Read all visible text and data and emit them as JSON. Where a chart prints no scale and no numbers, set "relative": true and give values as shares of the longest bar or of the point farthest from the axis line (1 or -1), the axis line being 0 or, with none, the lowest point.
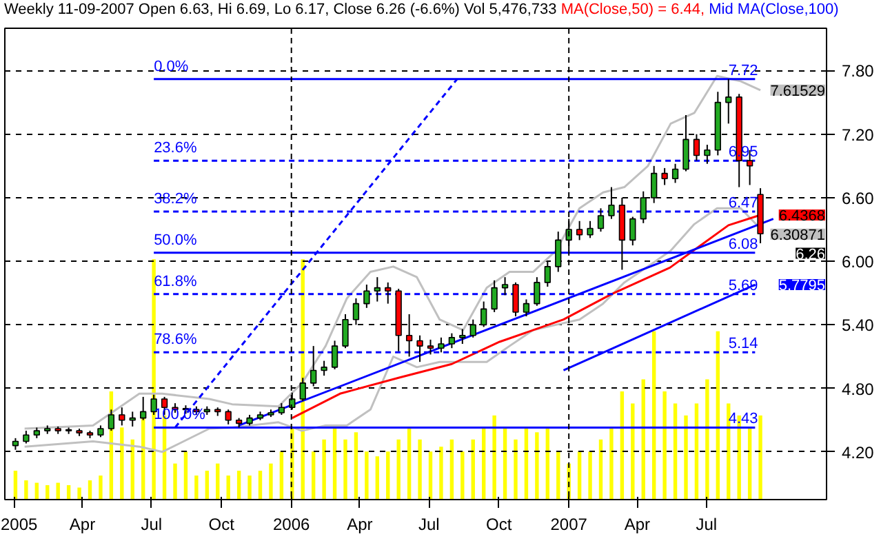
{
  "chart_data": [
    {
      "type": "candlestick",
      "title": "Weekly 11-09-2007 Open 6.63, Hi 6.69, Lo 6.17, Close 6.26 (-6.6%) Vol 5,476,733",
      "x": [
        "2005-01-03",
        "2005-01-17",
        "2005-01-31",
        "2005-02-14",
        "2005-02-28",
        "2005-03-14",
        "2005-03-28",
        "2005-04-11",
        "2005-04-25",
        "2005-05-09",
        "2005-05-23",
        "2005-06-06",
        "2005-06-20",
        "2005-07-04",
        "2005-07-18",
        "2005-08-01",
        "2005-08-15",
        "2005-08-29",
        "2005-09-12",
        "2005-09-26",
        "2005-10-10",
        "2005-10-24",
        "2005-11-07",
        "2005-11-21",
        "2005-12-05",
        "2005-12-19",
        "2006-01-02",
        "2006-01-16",
        "2006-01-30",
        "2006-02-13",
        "2006-02-27",
        "2006-03-13",
        "2006-03-27",
        "2006-04-10",
        "2006-04-24",
        "2006-05-08",
        "2006-05-22",
        "2006-06-05",
        "2006-06-19",
        "2006-07-03",
        "2006-07-17",
        "2006-07-31",
        "2006-08-14",
        "2006-08-28",
        "2006-09-11",
        "2006-09-25",
        "2006-10-09",
        "2006-10-23",
        "2006-11-06",
        "2006-11-20",
        "2006-12-04",
        "2006-12-18",
        "2007-01-01",
        "2007-01-15",
        "2007-01-29",
        "2007-02-12",
        "2007-02-26",
        "2007-03-12",
        "2007-03-26",
        "2007-04-09",
        "2007-04-23",
        "2007-05-07",
        "2007-05-21",
        "2007-06-04",
        "2007-06-18",
        "2007-07-02",
        "2007-07-16",
        "2007-07-30",
        "2007-08-13",
        "2007-08-27",
        "2007-09-10"
      ],
      "ohlc": [
        [
          4.26,
          4.33,
          4.22,
          4.3
        ],
        [
          4.3,
          4.4,
          4.28,
          4.36
        ],
        [
          4.36,
          4.43,
          4.33,
          4.4
        ],
        [
          4.4,
          4.45,
          4.37,
          4.42
        ],
        [
          4.42,
          4.44,
          4.37,
          4.4
        ],
        [
          4.4,
          4.43,
          4.37,
          4.41
        ],
        [
          4.4,
          4.42,
          4.35,
          4.38
        ],
        [
          4.38,
          4.4,
          4.33,
          4.36
        ],
        [
          4.36,
          4.45,
          4.34,
          4.42
        ],
        [
          4.42,
          4.6,
          4.4,
          4.55
        ],
        [
          4.55,
          4.62,
          4.45,
          4.5
        ],
        [
          4.5,
          4.58,
          4.44,
          4.52
        ],
        [
          4.52,
          4.72,
          4.5,
          4.58
        ],
        [
          4.58,
          4.74,
          4.55,
          4.7
        ],
        [
          4.7,
          4.72,
          4.55,
          4.62
        ],
        [
          4.62,
          4.66,
          4.57,
          4.6
        ],
        [
          4.6,
          4.64,
          4.56,
          4.61
        ],
        [
          4.6,
          4.63,
          4.55,
          4.58
        ],
        [
          4.58,
          4.63,
          4.55,
          4.6
        ],
        [
          4.6,
          4.62,
          4.54,
          4.58
        ],
        [
          4.58,
          4.6,
          4.46,
          4.5
        ],
        [
          4.5,
          4.52,
          4.43,
          4.47
        ],
        [
          4.47,
          4.55,
          4.45,
          4.52
        ],
        [
          4.52,
          4.58,
          4.5,
          4.55
        ],
        [
          4.55,
          4.6,
          4.53,
          4.57
        ],
        [
          4.57,
          4.66,
          4.55,
          4.62
        ],
        [
          4.62,
          4.76,
          4.6,
          4.7
        ],
        [
          4.7,
          4.9,
          4.68,
          4.85
        ],
        [
          4.85,
          5.2,
          4.82,
          4.97
        ],
        [
          4.97,
          5.06,
          4.92,
          5.0
        ],
        [
          5.0,
          5.25,
          4.98,
          5.2
        ],
        [
          5.2,
          5.5,
          5.18,
          5.45
        ],
        [
          5.45,
          5.65,
          5.4,
          5.6
        ],
        [
          5.6,
          5.78,
          5.56,
          5.72
        ],
        [
          5.72,
          5.85,
          5.62,
          5.75
        ],
        [
          5.75,
          5.8,
          5.6,
          5.72
        ],
        [
          5.72,
          5.74,
          5.15,
          5.3
        ],
        [
          5.3,
          5.5,
          5.1,
          5.25
        ],
        [
          5.25,
          5.3,
          5.05,
          5.2
        ],
        [
          5.2,
          5.26,
          5.12,
          5.18
        ],
        [
          5.18,
          5.28,
          5.14,
          5.22
        ],
        [
          5.22,
          5.32,
          5.18,
          5.28
        ],
        [
          5.28,
          5.36,
          5.22,
          5.3
        ],
        [
          5.3,
          5.45,
          5.28,
          5.4
        ],
        [
          5.4,
          5.62,
          5.38,
          5.55
        ],
        [
          5.55,
          5.82,
          5.52,
          5.75
        ],
        [
          5.75,
          5.85,
          5.68,
          5.78
        ],
        [
          5.78,
          5.8,
          5.48,
          5.52
        ],
        [
          5.52,
          5.64,
          5.48,
          5.6
        ],
        [
          5.6,
          5.85,
          5.58,
          5.8
        ],
        [
          5.8,
          6.0,
          5.76,
          5.95
        ],
        [
          5.95,
          6.28,
          5.9,
          6.2
        ],
        [
          6.2,
          6.4,
          6.1,
          6.3
        ],
        [
          6.3,
          6.38,
          6.2,
          6.25
        ],
        [
          6.25,
          6.38,
          6.22,
          6.31
        ],
        [
          6.31,
          6.5,
          6.28,
          6.43
        ],
        [
          6.43,
          6.7,
          6.4,
          6.53
        ],
        [
          6.53,
          6.6,
          5.92,
          6.2
        ],
        [
          6.2,
          6.42,
          6.15,
          6.4
        ],
        [
          6.4,
          6.66,
          6.36,
          6.6
        ],
        [
          6.6,
          6.9,
          6.55,
          6.83
        ],
        [
          6.83,
          6.88,
          6.72,
          6.78
        ],
        [
          6.78,
          6.92,
          6.74,
          6.87
        ],
        [
          6.87,
          7.38,
          6.85,
          7.15
        ],
        [
          7.15,
          7.2,
          6.95,
          7.0
        ],
        [
          7.0,
          7.1,
          6.92,
          7.05
        ],
        [
          7.05,
          7.6,
          7.0,
          7.5
        ],
        [
          7.5,
          7.72,
          7.3,
          7.55
        ],
        [
          7.55,
          7.58,
          6.7,
          6.95
        ],
        [
          6.95,
          7.05,
          6.72,
          6.9
        ],
        [
          6.63,
          6.69,
          6.17,
          6.26
        ]
      ],
      "colors": [
        "#22aa22",
        "#22aa22",
        "#22aa22",
        "#22aa22",
        "#ff0000",
        "#22aa22",
        "#ff0000",
        "#ff0000",
        "#22aa22",
        "#22aa22",
        "#ff0000",
        "#22aa22",
        "#22aa22",
        "#22aa22",
        "#ff0000",
        "#ff0000",
        "#22aa22",
        "#ff0000",
        "#22aa22",
        "#ff0000",
        "#ff0000",
        "#ff0000",
        "#22aa22",
        "#22aa22",
        "#22aa22",
        "#22aa22",
        "#22aa22",
        "#22aa22",
        "#22aa22",
        "#22aa22",
        "#22aa22",
        "#22aa22",
        "#22aa22",
        "#22aa22",
        "#22aa22",
        "#ff0000",
        "#ff0000",
        "#ff0000",
        "#ff0000",
        "#ff0000",
        "#22aa22",
        "#22aa22",
        "#22aa22",
        "#22aa22",
        "#22aa22",
        "#22aa22",
        "#22aa22",
        "#ff0000",
        "#22aa22",
        "#22aa22",
        "#22aa22",
        "#22aa22",
        "#22aa22",
        "#ff0000",
        "#22aa22",
        "#22aa22",
        "#22aa22",
        "#ff0000",
        "#22aa22",
        "#22aa22",
        "#22aa22",
        "#ff0000",
        "#22aa22",
        "#22aa22",
        "#ff0000",
        "#22aa22",
        "#22aa22",
        "#22aa22",
        "#ff0000",
        "#ff0000",
        "#ff0000"
      ],
      "value_labels": [
        null,
        null,
        null,
        null,
        null,
        null,
        null,
        null,
        null,
        null,
        null,
        null,
        null,
        null,
        null,
        null,
        null,
        null,
        null,
        null,
        null,
        null,
        null,
        null,
        null,
        null,
        null,
        null,
        null,
        null,
        null,
        null,
        null,
        null,
        null,
        null,
        null,
        null,
        null,
        null,
        null,
        null,
        null,
        null,
        null,
        null,
        null,
        null,
        null,
        null,
        null,
        null,
        null,
        null,
        null,
        null,
        null,
        null,
        null,
        null,
        null,
        null,
        null,
        null,
        null,
        null,
        null,
        null,
        null,
        null,
        "6.26"
      ],
      "series": [
        {
          "type": "line",
          "color": "#c0c0c0",
          "x": [
            "2005-01-15",
            "2005-04-15",
            "2005-06-15",
            "2005-07-15",
            "2005-09-15",
            "2005-10-15",
            "2005-12-15",
            "2006-01-15",
            "2006-02-15",
            "2006-03-15",
            "2006-04-15",
            "2006-05-15",
            "2006-06-15",
            "2006-07-15",
            "2006-08-15",
            "2006-09-15",
            "2006-10-15",
            "2006-11-15",
            "2006-12-15",
            "2007-01-15",
            "2007-02-15",
            "2007-03-15",
            "2007-04-15",
            "2007-05-15",
            "2007-06-15",
            "2007-07-15",
            "2007-08-15",
            "2007-09-10"
          ],
          "values": [
            4.42,
            4.45,
            4.75,
            4.75,
            4.7,
            4.65,
            4.63,
            4.85,
            5.2,
            5.65,
            5.9,
            5.95,
            5.85,
            5.45,
            5.35,
            5.75,
            5.9,
            5.9,
            6.1,
            6.5,
            6.65,
            6.7,
            6.9,
            7.3,
            7.4,
            7.75,
            7.7,
            7.61529
          ],
          "value_labels": [
            null,
            null,
            null,
            null,
            null,
            null,
            null,
            null,
            null,
            null,
            null,
            null,
            null,
            null,
            null,
            null,
            null,
            null,
            null,
            null,
            null,
            null,
            null,
            null,
            null,
            null,
            null,
            "7.61529"
          ]
        },
        {
          "type": "line",
          "color": "#c0c0c0",
          "x": [
            "2005-01-15",
            "2005-04-15",
            "2005-06-15",
            "2005-07-15",
            "2005-09-15",
            "2005-10-15",
            "2005-12-15",
            "2006-01-15",
            "2006-02-15",
            "2006-03-15",
            "2006-04-15",
            "2006-05-15",
            "2006-06-15",
            "2006-07-15",
            "2006-08-15",
            "2006-09-15",
            "2006-10-15",
            "2006-11-15",
            "2006-12-15",
            "2007-01-15",
            "2007-02-15",
            "2007-03-15",
            "2007-04-15",
            "2007-05-15",
            "2007-06-15",
            "2007-07-15",
            "2007-08-15",
            "2007-09-10"
          ],
          "values": [
            4.25,
            4.3,
            4.25,
            4.2,
            4.42,
            4.43,
            4.48,
            4.4,
            4.45,
            4.45,
            4.6,
            5.1,
            5.0,
            5.05,
            5.05,
            5.05,
            5.2,
            5.35,
            5.4,
            5.45,
            5.6,
            5.8,
            5.95,
            6.1,
            6.35,
            6.5,
            6.5,
            6.30871
          ],
          "value_labels": [
            null,
            null,
            null,
            null,
            null,
            null,
            null,
            null,
            null,
            null,
            null,
            null,
            null,
            null,
            null,
            null,
            null,
            null,
            null,
            null,
            null,
            null,
            null,
            null,
            null,
            null,
            null,
            "6.30871"
          ]
        },
        {
          "type": "line",
          "name": "MA(Close,50) = 6.44,",
          "color": "#ff0000",
          "x": [
            "2006-01-02",
            "2006-03-06",
            "2006-05-22",
            "2006-07-31",
            "2006-10-02",
            "2006-12-25",
            "2007-02-26",
            "2007-05-14",
            "2007-07-30",
            "2007-09-10"
          ],
          "values": [
            4.52,
            4.75,
            4.9,
            5.03,
            5.24,
            5.45,
            5.69,
            5.94,
            6.34,
            6.4368
          ],
          "value_labels": [
            null,
            null,
            null,
            null,
            null,
            null,
            null,
            null,
            null,
            "6.4368"
          ]
        },
        {
          "type": "line",
          "name": "Mid MA(Close,100)",
          "color": "#0000ff",
          "x": [
            "2006-12-25",
            "2007-09-03"
          ],
          "values": [
            4.97,
            5.7795
          ],
          "value_labels": [
            null,
            "5.7795"
          ]
        },
        {
          "type": "line",
          "color": "#0000ff",
          "x": [
            "2005-10-24",
            "2007-09-27"
          ],
          "values": [
            4.45,
            6.4
          ]
        },
        {
          "type": "line",
          "color": "#0000ff",
          "line_style": "dashed",
          "x": [
            "2005-08-01",
            "2006-08-07"
          ],
          "values": [
            4.43,
            7.72
          ]
        },
        {
          "type": "line",
          "color": "#0000ff",
          "x": [
            "2005-07-04",
            "2007-09-03"
          ],
          "values": [
            7.72,
            7.72
          ]
        },
        {
          "type": "line",
          "color": "#0000ff",
          "line_style": "dashed",
          "x": [
            "2005-07-04",
            "2007-09-03"
          ],
          "values": [
            6.95,
            6.95
          ]
        },
        {
          "type": "line",
          "color": "#0000ff",
          "line_style": "dashed",
          "x": [
            "2005-07-04",
            "2007-09-03"
          ],
          "values": [
            6.47,
            6.47
          ]
        },
        {
          "type": "line",
          "color": "#0000ff",
          "x": [
            "2005-07-04",
            "2007-09-03"
          ],
          "values": [
            6.08,
            6.08
          ]
        },
        {
          "type": "line",
          "color": "#0000ff",
          "line_style": "dashed",
          "x": [
            "2005-07-04",
            "2007-09-03"
          ],
          "values": [
            5.69,
            5.69
          ]
        },
        {
          "type": "line",
          "color": "#0000ff",
          "line_style": "dashed",
          "x": [
            "2005-07-04",
            "2007-09-03"
          ],
          "values": [
            5.14,
            5.14
          ]
        },
        {
          "type": "line",
          "color": "#0000ff",
          "x": [
            "2005-07-04",
            "2007-09-03"
          ],
          "values": [
            4.43,
            4.43
          ]
        }
      ],
      "annotations": [
        {
          "text": "0.0%",
          "x": "2005-07-04",
          "y": 7.72
        },
        {
          "text": "23.6%",
          "x": "2005-07-04",
          "y": 6.95
        },
        {
          "text": "38.2%",
          "x": "2005-07-04",
          "y": 6.47
        },
        {
          "text": "50.0%",
          "x": "2005-07-04",
          "y": 6.08
        },
        {
          "text": "61.8%",
          "x": "2005-07-04",
          "y": 5.69
        },
        {
          "text": "78.6%",
          "x": "2005-07-04",
          "y": 5.14
        },
        {
          "text": "100.0%",
          "x": "2005-07-04",
          "y": 4.43
        },
        {
          "text": "7.72",
          "x": "2007-07-30",
          "y": 7.72
        },
        {
          "text": "6.95",
          "x": "2007-07-30",
          "y": 6.95
        },
        {
          "text": "6.47",
          "x": "2007-07-30",
          "y": 6.47
        },
        {
          "text": "6.08",
          "x": "2007-07-30",
          "y": 6.08
        },
        {
          "text": "5.69",
          "x": "2007-07-30",
          "y": 5.69
        },
        {
          "text": "5.14",
          "x": "2007-07-30",
          "y": 5.14
        },
        {
          "text": "4.43",
          "x": "2007-07-30",
          "y": 4.43
        }
      ],
      "xlim": [
        "2004-12-20",
        "2007-12-06"
      ],
      "xticks": [
        {
          "value": "2005-01-01",
          "label": "2005"
        },
        {
          "value": "2005-04-01",
          "label": "Apr"
        },
        {
          "value": "2005-07-01",
          "label": "Jul"
        },
        {
          "value": "2005-10-01",
          "label": "Oct"
        },
        {
          "value": "2006-01-01",
          "label": "2006"
        },
        {
          "value": "2006-04-01",
          "label": "Apr"
        },
        {
          "value": "2006-07-01",
          "label": "Jul"
        },
        {
          "value": "2006-10-01",
          "label": "Oct"
        },
        {
          "value": "2007-01-01",
          "label": "2007"
        },
        {
          "value": "2007-04-01",
          "label": "Apr"
        },
        {
          "value": "2007-07-01",
          "label": "Jul"
        }
      ],
      "ylim": [
        3.75,
        8.2
      ],
      "yticks": [
        {
          "value": 4.2,
          "label": "4.20"
        },
        {
          "value": 4.8,
          "label": "4.80"
        },
        {
          "value": 5.4,
          "label": "5.40"
        },
        {
          "value": 6.0,
          "label": "6.00"
        },
        {
          "value": 6.6,
          "label": "6.60"
        },
        {
          "value": 7.2,
          "label": "7.20"
        },
        {
          "value": 7.8,
          "label": "7.80"
        }
      ],
      "grid": "y",
      "ref_lines": [
        {
          "axis": "x",
          "value": "2006-01-01",
          "color": "#000000",
          "line_style": "dashed"
        },
        {
          "axis": "x",
          "value": "2007-01-01",
          "color": "#000000",
          "line_style": "dashed"
        }
      ],
      "legend": "top"
    },
    {
      "type": "bar",
      "relative": true,
      "color": "#ffff00",
      "xlim": [
        "2004-12-20",
        "2007-12-06"
      ],
      "tick_labels": false,
      "x": [
        "2005-01-03",
        "2005-01-17",
        "2005-01-31",
        "2005-02-14",
        "2005-02-28",
        "2005-03-14",
        "2005-03-28",
        "2005-04-11",
        "2005-04-25",
        "2005-05-09",
        "2005-05-23",
        "2005-06-06",
        "2005-06-20",
        "2005-07-04",
        "2005-07-18",
        "2005-08-01",
        "2005-08-15",
        "2005-08-29",
        "2005-09-12",
        "2005-09-26",
        "2005-10-10",
        "2005-10-24",
        "2005-11-07",
        "2005-11-21",
        "2005-12-05",
        "2005-12-19",
        "2006-01-02",
        "2006-01-16",
        "2006-01-30",
        "2006-02-13",
        "2006-02-27",
        "2006-03-13",
        "2006-03-27",
        "2006-04-10",
        "2006-04-24",
        "2006-05-08",
        "2006-05-22",
        "2006-06-05",
        "2006-06-19",
        "2006-07-03",
        "2006-07-17",
        "2006-07-31",
        "2006-08-14",
        "2006-08-28",
        "2006-09-11",
        "2006-09-25",
        "2006-10-09",
        "2006-10-23",
        "2006-11-06",
        "2006-11-20",
        "2006-12-04",
        "2006-12-18",
        "2007-01-01",
        "2007-01-15",
        "2007-01-29",
        "2007-02-12",
        "2007-02-26",
        "2007-03-12",
        "2007-03-26",
        "2007-04-09",
        "2007-04-23",
        "2007-05-07",
        "2007-05-21",
        "2007-06-04",
        "2007-06-18",
        "2007-07-02",
        "2007-07-16",
        "2007-07-30",
        "2007-08-13",
        "2007-08-27",
        "2007-09-10"
      ],
      "values": [
        0.12,
        0.08,
        0.07,
        0.06,
        0.07,
        0.06,
        0.05,
        0.08,
        0.1,
        0.45,
        0.3,
        0.25,
        0.35,
        1.0,
        0.35,
        0.15,
        0.2,
        0.1,
        0.12,
        0.15,
        0.1,
        0.12,
        0.1,
        0.12,
        0.15,
        0.2,
        0.3,
        1.0,
        0.2,
        0.25,
        0.3,
        0.25,
        0.28,
        0.2,
        0.18,
        0.2,
        0.25,
        0.3,
        0.25,
        0.2,
        0.22,
        0.25,
        0.2,
        0.25,
        0.3,
        0.35,
        0.3,
        0.25,
        0.3,
        0.28,
        0.3,
        0.2,
        0.15,
        0.2,
        0.2,
        0.25,
        0.3,
        0.45,
        0.4,
        0.5,
        0.7,
        0.45,
        0.4,
        0.35,
        0.4,
        0.5,
        0.7,
        0.4,
        0.35,
        0.3,
        0.35
      ]
    }
  ]
}
